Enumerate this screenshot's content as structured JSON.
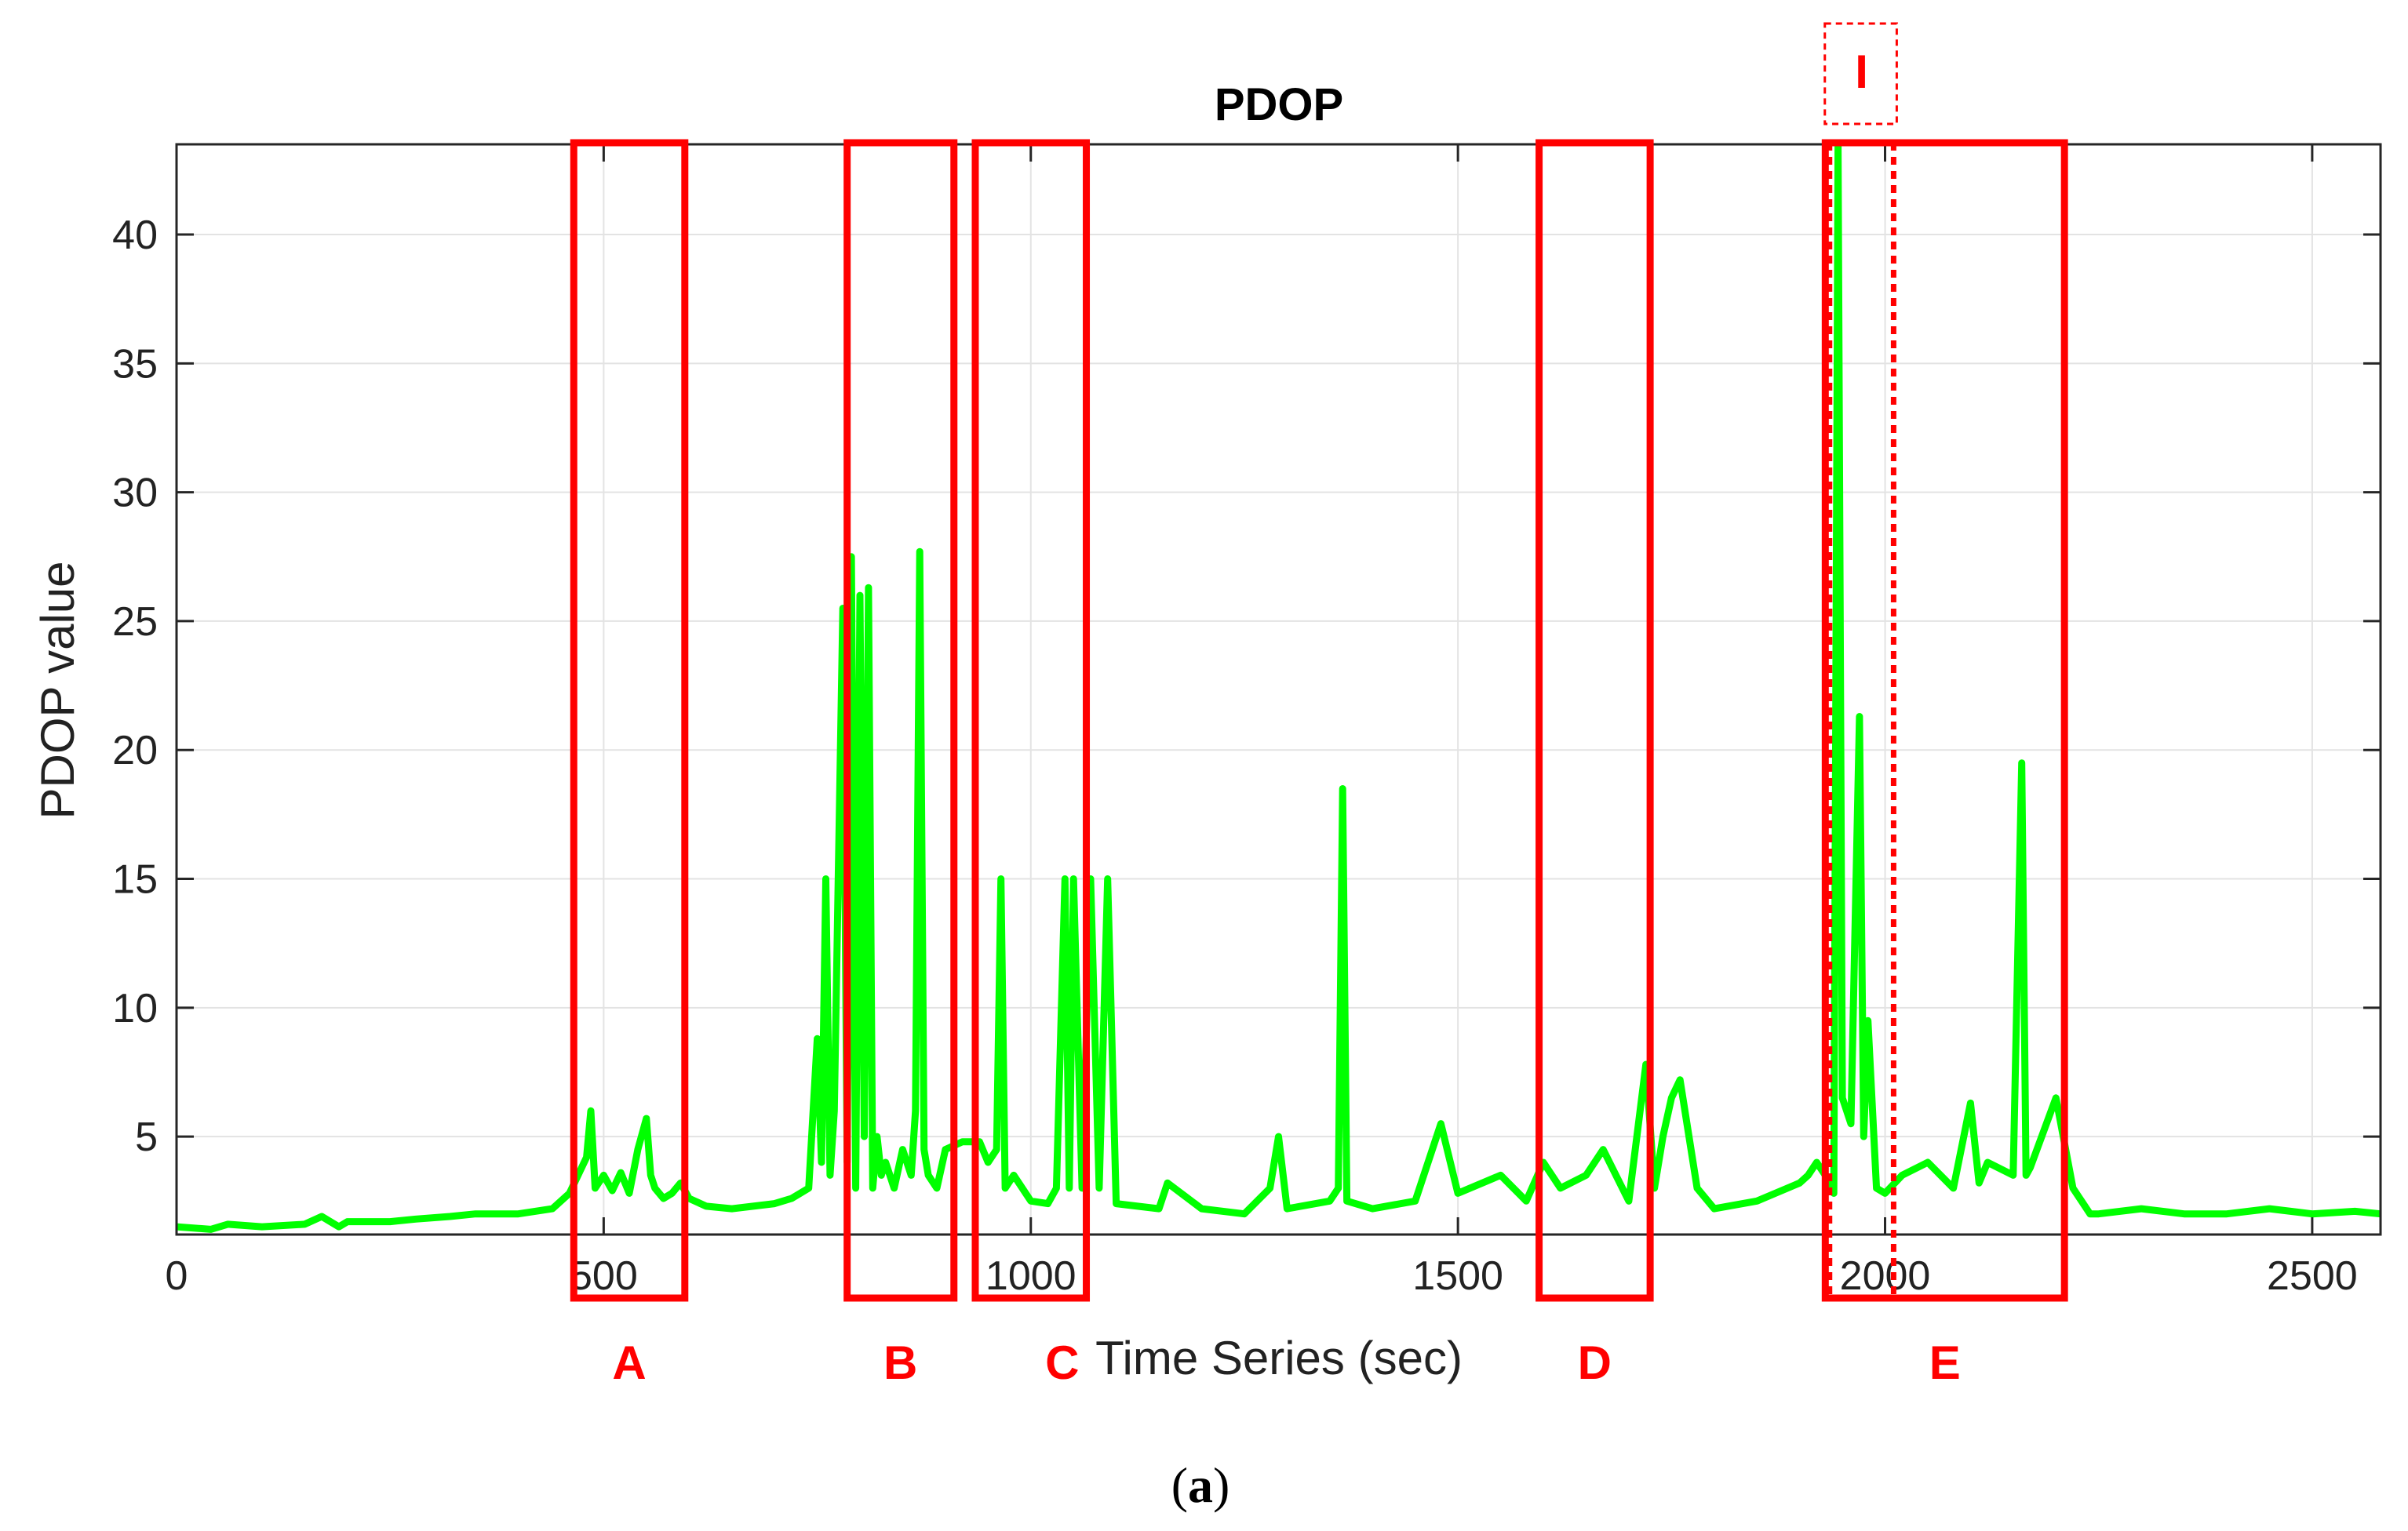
{
  "chart_data": {
    "type": "line",
    "title": "PDOP",
    "xlabel": "Time Series (sec)",
    "ylabel": "PDOP value",
    "xlim": [
      0,
      2580
    ],
    "ylim": [
      1.2,
      43.5
    ],
    "xticks": [
      0,
      500,
      1000,
      1500,
      2000,
      2500
    ],
    "yticks": [
      5,
      10,
      15,
      20,
      25,
      30,
      35,
      40
    ],
    "xtick_labels": [
      "0",
      "500",
      "1000",
      "1500",
      "2000",
      "2500"
    ],
    "ytick_labels": [
      "5",
      "10",
      "15",
      "20",
      "25",
      "30",
      "35",
      "40"
    ],
    "grid": true,
    "series": [
      {
        "name": "PDOP",
        "color": "#00ff00",
        "x": [
          0,
          40,
          60,
          100,
          150,
          170,
          190,
          200,
          250,
          280,
          320,
          350,
          360,
          400,
          440,
          460,
          470,
          480,
          485,
          490,
          500,
          510,
          520,
          530,
          540,
          550,
          555,
          560,
          570,
          580,
          590,
          600,
          620,
          650,
          700,
          720,
          740,
          750,
          755,
          760,
          765,
          770,
          780,
          785,
          790,
          795,
          800,
          805,
          810,
          815,
          820,
          825,
          830,
          840,
          850,
          860,
          865,
          870,
          875,
          880,
          890,
          900,
          920,
          940,
          950,
          960,
          965,
          970,
          980,
          1000,
          1020,
          1030,
          1040,
          1045,
          1050,
          1060,
          1070,
          1080,
          1090,
          1100,
          1150,
          1160,
          1200,
          1250,
          1280,
          1290,
          1300,
          1350,
          1360,
          1365,
          1370,
          1400,
          1450,
          1480,
          1500,
          1550,
          1580,
          1600,
          1620,
          1650,
          1670,
          1700,
          1720,
          1730,
          1740,
          1750,
          1760,
          1780,
          1800,
          1850,
          1900,
          1910,
          1920,
          1930,
          1940,
          1945,
          1950,
          1960,
          1970,
          1975,
          1980,
          1990,
          2000,
          2020,
          2050,
          2080,
          2100,
          2110,
          2120,
          2150,
          2160,
          2165,
          2170,
          2200,
          2220,
          2230,
          2240,
          2250,
          2300,
          2350,
          2400,
          2450,
          2500,
          2550,
          2580
        ],
        "values": [
          1.5,
          1.4,
          1.6,
          1.5,
          1.6,
          1.9,
          1.5,
          1.7,
          1.7,
          1.8,
          1.9,
          2.0,
          2.0,
          2.0,
          2.2,
          2.8,
          3.5,
          4.2,
          6.0,
          3.0,
          3.5,
          2.9,
          3.6,
          2.8,
          4.5,
          5.7,
          3.5,
          3.0,
          2.6,
          2.8,
          3.2,
          2.6,
          2.3,
          2.2,
          2.4,
          2.6,
          3.0,
          8.8,
          4.0,
          15.0,
          3.5,
          6.0,
          25.5,
          4.0,
          27.5,
          3.0,
          26.0,
          5.0,
          26.3,
          3.0,
          5.0,
          3.5,
          4.0,
          3.0,
          4.5,
          3.5,
          6.0,
          27.7,
          4.5,
          3.5,
          3.0,
          4.5,
          4.8,
          4.8,
          4.0,
          4.5,
          15.0,
          3.0,
          3.5,
          2.5,
          2.4,
          3.0,
          15.0,
          3.0,
          15.0,
          3.0,
          15.0,
          3.0,
          15.0,
          2.4,
          2.2,
          3.2,
          2.2,
          2.0,
          3.0,
          5.0,
          2.2,
          2.5,
          3.0,
          18.5,
          2.5,
          2.2,
          2.5,
          5.5,
          2.8,
          3.5,
          2.5,
          4.0,
          3.0,
          3.5,
          4.5,
          2.5,
          7.8,
          3.0,
          5.0,
          6.5,
          7.2,
          3.0,
          2.2,
          2.5,
          3.2,
          3.5,
          4.0,
          3.5,
          2.8,
          43.5,
          6.5,
          5.5,
          21.3,
          5.0,
          9.5,
          3.0,
          2.8,
          3.5,
          4.0,
          3.0,
          6.3,
          3.2,
          4.0,
          3.5,
          19.5,
          3.5,
          3.8,
          6.5,
          3.0,
          2.5,
          2.0,
          2.0,
          2.2,
          2.0,
          2.0,
          2.2,
          2.0,
          2.1,
          2.0
        ]
      }
    ],
    "regions": [
      {
        "label": "A",
        "x_start": 465,
        "x_end": 595
      },
      {
        "label": "B",
        "x_start": 785,
        "x_end": 910
      },
      {
        "label": "C",
        "x_start": 935,
        "x_end": 1065
      },
      {
        "label": "D",
        "x_start": 1595,
        "x_end": 1725
      },
      {
        "label": "E",
        "x_start": 1930,
        "x_end": 2210
      }
    ],
    "interval": {
      "label": "I",
      "x_start": 1935,
      "x_end": 2010
    }
  },
  "caption": {
    "open": "(",
    "letter": "a",
    "close": ")"
  }
}
